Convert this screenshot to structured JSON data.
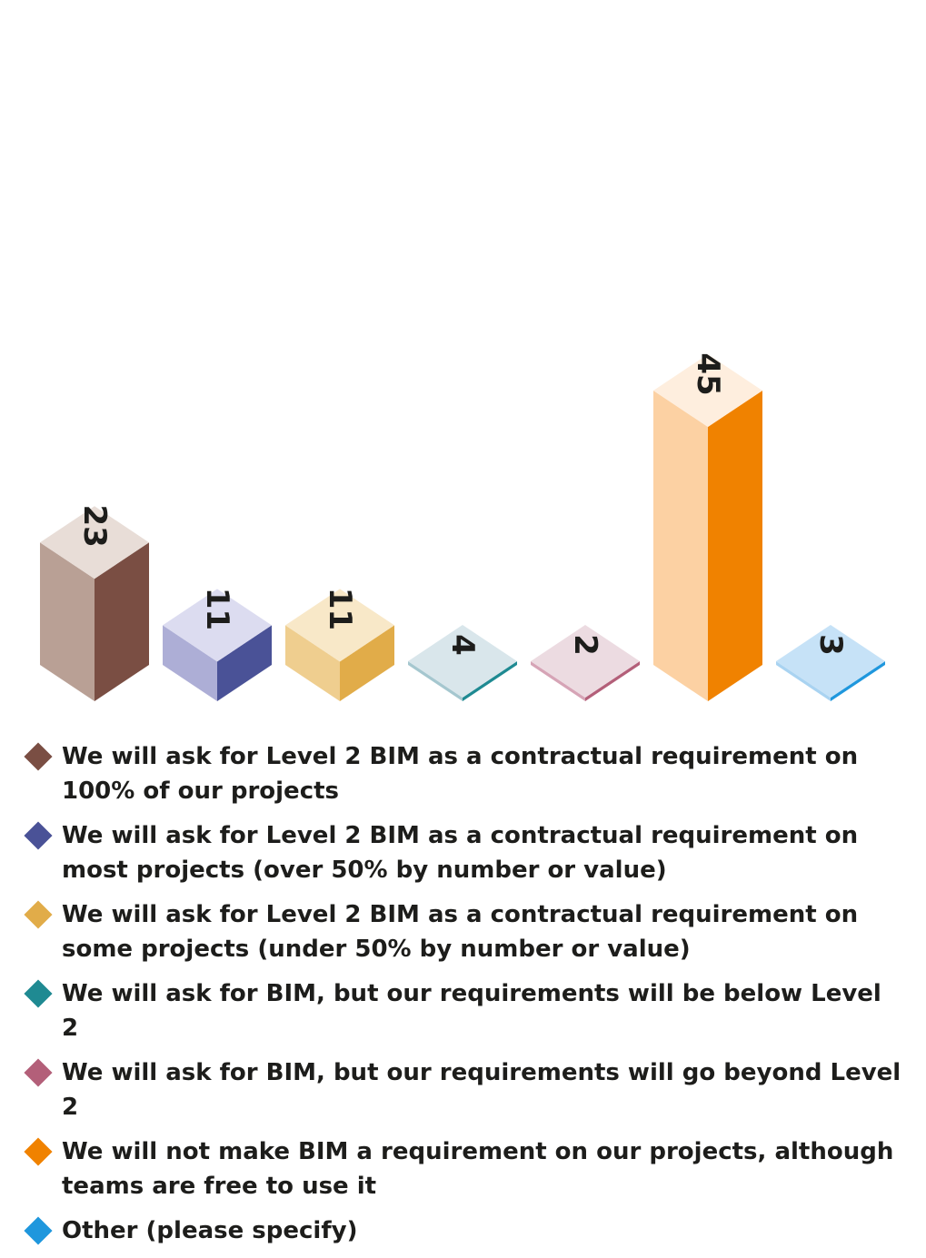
{
  "chart_data": {
    "type": "bar",
    "categories": [
      "We will ask for Level 2 BIM as a contractual requirement on 100% of our projects",
      "We will ask for Level 2 BIM as a contractual requirement on most projects (over 50% by number or value)",
      "We will ask for Level 2 BIM as a contractual requirement on some projects (under 50% by number or value)",
      "We will ask for BIM, but our requirements will be below Level 2",
      "We will ask for BIM, but our requirements will go beyond Level 2",
      "We will not make BIM a requirement on our projects, although teams are free to use it",
      "Other (please specify)"
    ],
    "values": [
      23,
      11,
      11,
      4,
      2,
      45,
      3
    ],
    "data_labels": [
      "23",
      "11",
      "11",
      "4",
      "2",
      "45",
      "3"
    ],
    "colors": [
      {
        "front": "#b9a095",
        "side": "#7a4e43",
        "top": "#e8ddd7",
        "edge": "#7a4e43",
        "marker": "#7a4e43"
      },
      {
        "front": "#adaed6",
        "side": "#4a5297",
        "top": "#dcdcf0",
        "edge": "#4a5297",
        "marker": "#4a5297"
      },
      {
        "front": "#efce8f",
        "side": "#e1ac49",
        "top": "#f8e8c8",
        "edge": "#e1ac49",
        "marker": "#e1ac49"
      },
      {
        "front": "#a5c7cf",
        "side": "#1f8a92",
        "top": "#d9e6eb",
        "edge": "#1f8a92",
        "marker": "#1f8a92"
      },
      {
        "front": "#d6a4b6",
        "side": "#b35f79",
        "top": "#ecdbe1",
        "edge": "#b35f79",
        "marker": "#b35f79"
      },
      {
        "front": "#fcd1a3",
        "side": "#f08200",
        "top": "#feeede",
        "edge": "#f08200",
        "marker": "#f08200"
      },
      {
        "front": "#a9d3f1",
        "side": "#1f97dd",
        "top": "#c6e2f7",
        "edge": "#1f97dd",
        "marker": "#1f97dd"
      }
    ],
    "style": "3d-isometric",
    "legend_position": "bottom",
    "grid": false
  }
}
